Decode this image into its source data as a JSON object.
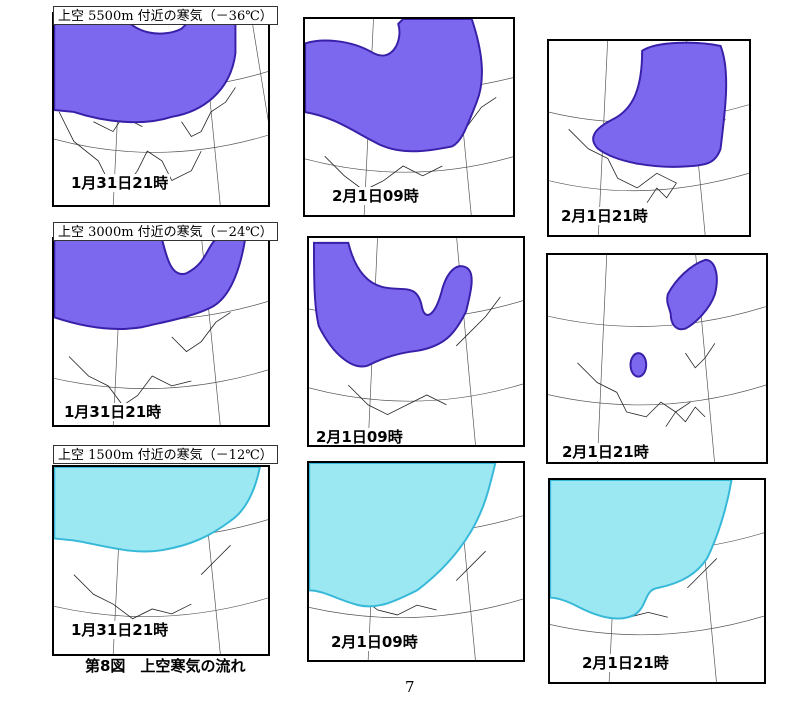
{
  "colors": {
    "cold_air_upper": "#7b68ee",
    "cold_air_upper_edge": "#3a1fa8",
    "cold_air_low": "#9be7f2",
    "cold_air_low_edge": "#36b8d8",
    "map_lines": "#555555"
  },
  "rows": [
    {
      "label": "上空 5500m 付近の寒気（－36℃）",
      "panels": [
        {
          "time": "1月31日21時"
        },
        {
          "time": "2月1日09時"
        },
        {
          "time": "2月1日21時"
        }
      ]
    },
    {
      "label": "上空 3000m 付近の寒気（－24℃）",
      "panels": [
        {
          "time": "1月31日21時"
        },
        {
          "time": "2月1日09時"
        },
        {
          "time": "2月1日21時"
        }
      ]
    },
    {
      "label": "上空 1500m 付近の寒気（－12℃）",
      "panels": [
        {
          "time": "1月31日21時"
        },
        {
          "time": "2月1日09時"
        },
        {
          "time": "2月1日21時"
        }
      ]
    }
  ],
  "caption": "第8図　上空寒気の流れ",
  "page_number": "7"
}
